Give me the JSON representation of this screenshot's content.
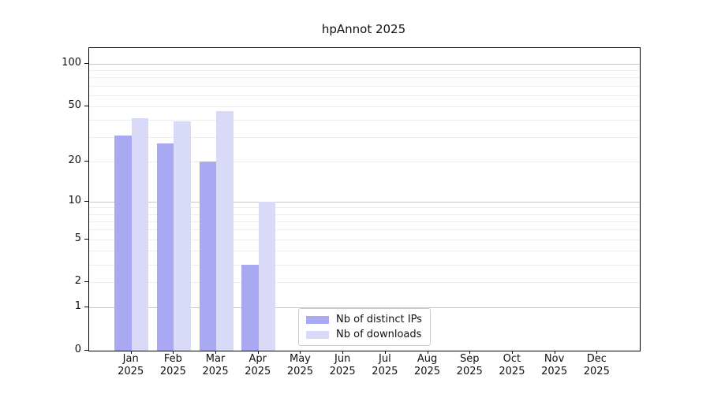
{
  "title": "hpAnnot 2025",
  "legend": {
    "items": [
      {
        "label": "Nb of distinct IPs",
        "color": "#a8a8f3"
      },
      {
        "label": "Nb of downloads",
        "color": "#d9d9f8"
      }
    ]
  },
  "chart_data": {
    "type": "bar",
    "title": "hpAnnot 2025",
    "year": "2025",
    "months": [
      "Jan",
      "Feb",
      "Mar",
      "Apr",
      "May",
      "Jun",
      "Jul",
      "Aug",
      "Sep",
      "Oct",
      "Nov",
      "Dec"
    ],
    "categories": [
      "Jan 2025",
      "Feb 2025",
      "Mar 2025",
      "Apr 2025",
      "May 2025",
      "Jun 2025",
      "Jul 2025",
      "Aug 2025",
      "Sep 2025",
      "Oct 2025",
      "Nov 2025",
      "Dec 2025"
    ],
    "series": [
      {
        "name": "Nb of distinct IPs",
        "color": "#a8a8f3",
        "values": [
          31,
          27,
          20,
          3,
          0,
          0,
          0,
          0,
          0,
          0,
          0,
          0
        ]
      },
      {
        "name": "Nb of downloads",
        "color": "#d9d9f8",
        "values": [
          41,
          39,
          46,
          10,
          0,
          0,
          0,
          0,
          0,
          0,
          0,
          0
        ]
      }
    ],
    "xlabel": "",
    "ylabel": "",
    "yscale": "log1p",
    "ylim": [
      0,
      129
    ],
    "y_ticks": [
      0,
      1,
      2,
      5,
      10,
      20,
      50,
      100
    ],
    "grid_minor": [
      2,
      3,
      4,
      5,
      6,
      7,
      8,
      9,
      20,
      30,
      40,
      50,
      60,
      70,
      80,
      90
    ],
    "grid_major": [
      1,
      10,
      100
    ],
    "grid_minor_color": "#ededed",
    "grid_major_color": "#c8c8c8",
    "axis_color": "#000000",
    "legend_position": "lower center"
  }
}
